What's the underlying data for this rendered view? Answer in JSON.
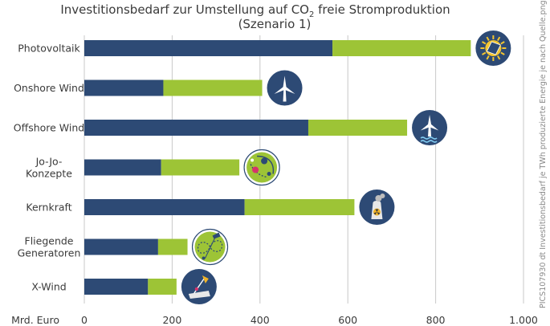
{
  "chart_data": {
    "type": "bar",
    "stacked": true,
    "orientation": "horizontal",
    "title_line1_pre": "Investitionsbedarf zur Umstellung auf CO",
    "title_line1_sub": "2",
    "title_line1_post": " freie Stromproduktion",
    "title_line2": "(Szenario 1)",
    "xlabel": "Mrd. Euro",
    "xlim": [
      0,
      1000
    ],
    "xticks": [
      0,
      200,
      400,
      600,
      800,
      1000
    ],
    "xtick_labels": [
      "0",
      "200",
      "400",
      "600",
      "800",
      "1.000"
    ],
    "grid": true,
    "categories": [
      {
        "label": [
          "Photovoltaik"
        ],
        "icon": "sun-panel-icon"
      },
      {
        "label": [
          "Onshore Wind"
        ],
        "icon": "wind-turbine-icon"
      },
      {
        "label": [
          "Offshore Wind"
        ],
        "icon": "offshore-wind-turbine-icon"
      },
      {
        "label": [
          "Jo-Jo-",
          "Konzepte"
        ],
        "icon": "yoyo-concept-icon"
      },
      {
        "label": [
          "Kernkraft"
        ],
        "icon": "nuclear-plant-icon"
      },
      {
        "label": [
          "Fliegende",
          "Generatoren"
        ],
        "icon": "flying-generator-icon"
      },
      {
        "label": [
          "X-Wind"
        ],
        "icon": "x-wind-icon"
      }
    ],
    "series": [
      {
        "values": [
          565,
          180,
          510,
          175,
          365,
          168,
          145
        ],
        "color": "#2d4a75"
      },
      {
        "values": [
          315,
          225,
          225,
          178,
          250,
          67,
          65
        ],
        "color": "#9dc436"
      }
    ]
  },
  "credit": "PICS107930 dt Investitionsbedarf je TWh produzierte Energie je nach Quelle.png",
  "colors": {
    "icon_bg": "#2d4a75",
    "icon_green_bg": "#9dc436",
    "grid": "#c8c8c8"
  }
}
